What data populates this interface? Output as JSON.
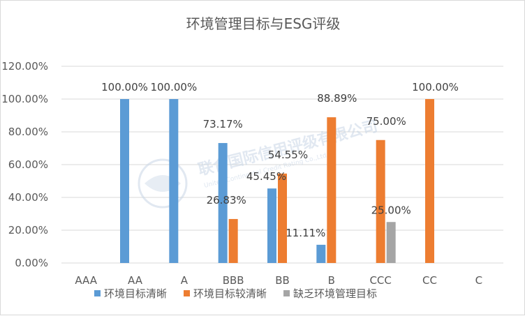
{
  "chart_data": {
    "type": "bar",
    "title": "环境管理目标与ESG评级",
    "categories": [
      "AAA",
      "AA",
      "A",
      "BBB",
      "BB",
      "B",
      "CCC",
      "CC",
      "C"
    ],
    "series": [
      {
        "name": "环境目标清晰",
        "color": "#5b9bd5",
        "values": [
          null,
          100.0,
          100.0,
          73.17,
          45.45,
          11.11,
          null,
          null,
          null
        ]
      },
      {
        "name": "环境目标较清晰",
        "color": "#ed7d31",
        "values": [
          null,
          null,
          null,
          26.83,
          54.55,
          88.89,
          75.0,
          100.0,
          null
        ]
      },
      {
        "name": "缺乏环境管理目标",
        "color": "#a5a5a5",
        "values": [
          null,
          null,
          null,
          null,
          null,
          null,
          25.0,
          null,
          null
        ]
      }
    ],
    "ylim": [
      0,
      120
    ],
    "yticks": [
      "0.00%",
      "20.00%",
      "40.00%",
      "60.00%",
      "80.00%",
      "100.00%",
      "120.00%"
    ],
    "value_suffix": "%",
    "grid": true,
    "legend": "bottom"
  },
  "watermark": {
    "text": "联合国际信用评级有限公司",
    "subtext": "United Continental Credit Rating Co.,Ltd"
  }
}
